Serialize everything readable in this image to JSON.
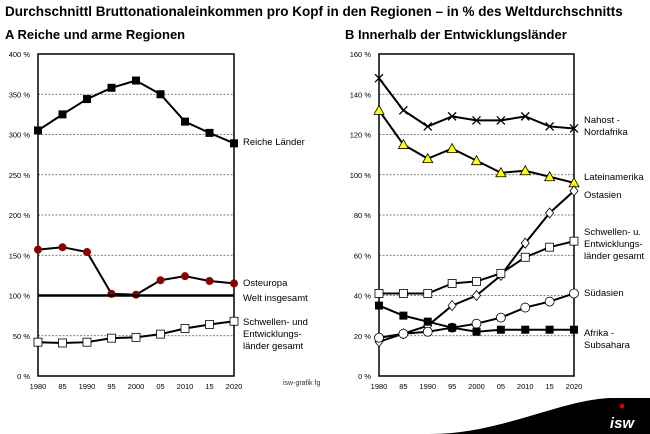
{
  "title": "Durchschnittl Bruttonationaleinkommen pro Kopf in den Regionen – in % des Weltdurchschnitts",
  "credit": "isw-grafik fg",
  "logo_text": "isw",
  "chart_data": [
    {
      "type": "line",
      "title": "A  Reiche und arme Regionen",
      "categories": [
        "1980",
        "85",
        "1990",
        "95",
        "2000",
        "05",
        "2010",
        "15",
        "2020"
      ],
      "yticks": [
        "0 %",
        "50 %",
        "100 %",
        "150 %",
        "200 %",
        "250 %",
        "300 %",
        "350 %",
        "400 %"
      ],
      "ylim": [
        0,
        400
      ],
      "grid": "horizontal dashed",
      "series": [
        {
          "name": "Reiche Länder",
          "marker": "filled-square",
          "color": "#000000",
          "values": [
            305,
            325,
            344,
            358,
            367,
            350,
            316,
            302,
            289
          ]
        },
        {
          "name": "Osteuropa",
          "marker": "filled-circle",
          "color": "#8b0000",
          "values": [
            157,
            160,
            154,
            102,
            101,
            119,
            124,
            118,
            115
          ]
        },
        {
          "name": "Welt insgesamt",
          "marker": "none",
          "color": "#000000",
          "values": [
            100,
            100,
            100,
            100,
            100,
            100,
            100,
            100,
            100
          ]
        },
        {
          "name": "Schwellen- und Entwicklungs- länder gesamt",
          "marker": "open-square",
          "color": "#000000",
          "values": [
            42,
            41,
            42,
            47,
            48,
            52,
            59,
            64,
            68
          ]
        }
      ]
    },
    {
      "type": "line",
      "title": "B  Innerhalb der Entwicklungsländer",
      "categories": [
        "1980",
        "85",
        "1990",
        "95",
        "2000",
        "05",
        "2010",
        "15",
        "2020"
      ],
      "yticks": [
        "0 %",
        "20 %",
        "40 %",
        "60 %",
        "80 %",
        "100 %",
        "120 %",
        "140 %",
        "160 %"
      ],
      "ylim": [
        0,
        160
      ],
      "grid": "horizontal dashed",
      "series": [
        {
          "name": "Nahost - Nordafrika",
          "marker": "x",
          "color": "#000000",
          "values": [
            148,
            132,
            124,
            129,
            127,
            127,
            129,
            124,
            123
          ]
        },
        {
          "name": "Lateinamerika",
          "marker": "yellow-triangle",
          "color": "#ffff00",
          "values": [
            132,
            115,
            108,
            113,
            107,
            101,
            102,
            99,
            96
          ]
        },
        {
          "name": "Ostasien",
          "marker": "open-diamond",
          "color": "#000000",
          "values": [
            17,
            21,
            25,
            35,
            40,
            50,
            66,
            81,
            92
          ]
        },
        {
          "name": "Schwellen- u. Entwicklungs- länder gesamt",
          "marker": "open-square",
          "color": "#000000",
          "values": [
            41,
            41,
            41,
            46,
            47,
            51,
            59,
            64,
            67
          ]
        },
        {
          "name": "Südasien",
          "marker": "open-circle",
          "color": "#000000",
          "values": [
            19,
            21,
            22,
            24,
            26,
            29,
            34,
            37,
            41
          ]
        },
        {
          "name": "Afrika - Subsahara",
          "marker": "filled-square",
          "color": "#000000",
          "values": [
            35,
            30,
            27,
            24,
            22,
            23,
            23,
            23,
            23
          ]
        }
      ]
    }
  ]
}
